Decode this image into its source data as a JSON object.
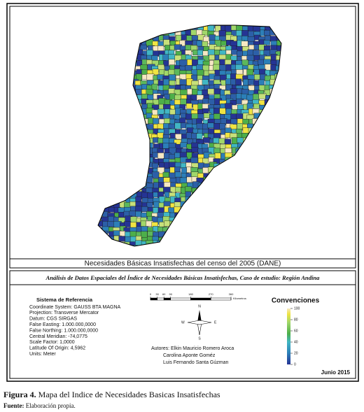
{
  "map": {
    "title": "Necesidades Básicas Insatisfechas del censo del 2005 (DANE)"
  },
  "layout": {
    "title": "Análisis de Datos Espaciales del Índice de Necesidades Básicas Insatisfechas, Caso de estudio: Región Andina",
    "date": "Junio 2015"
  },
  "reference": {
    "heading": "Sistema de Referencia",
    "lines": [
      "Coordinate System: GAUSS BTA MAGNA",
      "Projection: Transverse Mercator",
      "Datum: CGS SIRGAS",
      "False Easting: 1.000.000,0000",
      "False Northing: 1.000.000,0000",
      "Central Meridian: -74,0775",
      "Scale Factor: 1,0000",
      "Latitude Of Origin: 4,5962",
      "Units: Meter"
    ]
  },
  "scale_bar": {
    "ticks": [
      0,
      30,
      60,
      90,
      180,
      270,
      360
    ],
    "unit": "Kilometros"
  },
  "north_arrow": {
    "n": "N",
    "s": "S",
    "e": "E",
    "w": "W"
  },
  "authors": {
    "lines": [
      "Autores: Elkin Mauricio Romero Aroca",
      "Carolina Aponte Goméz",
      "Luis Fernando Santa Gúzman"
    ]
  },
  "legend": {
    "title": "Convenciones",
    "ticks": [
      0,
      20,
      40,
      60,
      80,
      100
    ]
  },
  "caption": {
    "label": "Figura 4.",
    "text": "Mapa del Indice de Necesidades Basicas Insatisfechas"
  },
  "source": {
    "label": "Fuente:",
    "text": "Elaboración propia."
  }
}
